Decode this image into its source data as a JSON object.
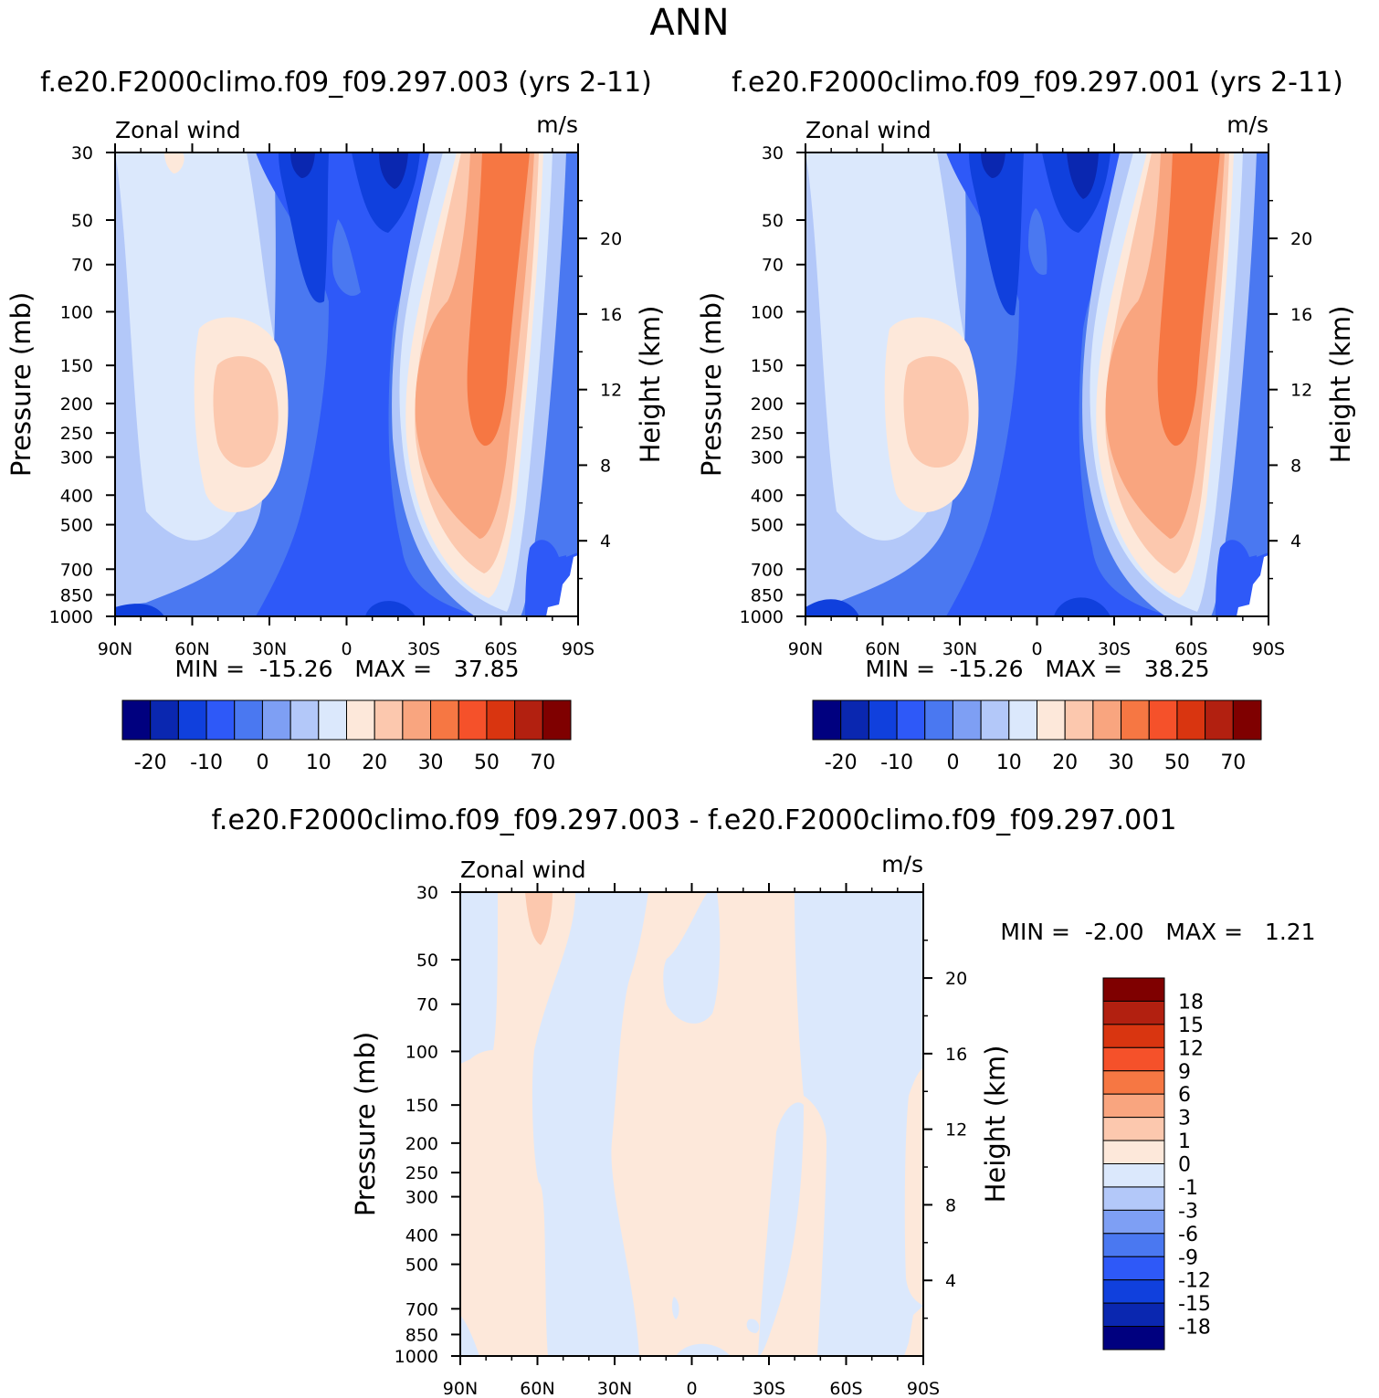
{
  "page_title": "ANN",
  "chart_data": [
    {
      "type": "heatmap",
      "id": "p1",
      "subtitle": "f.e20.F2000climo.f09_f09.297.003 (yrs 2-11)",
      "left_string": "Zonal wind",
      "units": "m/s",
      "xlabel": "",
      "ylabel": "Pressure (mb)",
      "y2label": "Height (km)",
      "x_ticks": [
        "90N",
        "60N",
        "30N",
        "0",
        "30S",
        "60S",
        "90S"
      ],
      "x_tick_values": [
        90,
        60,
        30,
        0,
        -30,
        -60,
        -90
      ],
      "y_ticks": [
        "30",
        "50",
        "70",
        "100",
        "150",
        "200",
        "250",
        "300",
        "400",
        "500",
        "700",
        "850",
        "1000"
      ],
      "y_tick_values": [
        30,
        50,
        70,
        100,
        150,
        200,
        250,
        300,
        400,
        500,
        700,
        850,
        1000
      ],
      "y2_ticks": [
        "20",
        "16",
        "12",
        "8",
        "4"
      ],
      "y2_tick_values": [
        20,
        16,
        12,
        8,
        4
      ],
      "ylim": [
        1000,
        30
      ],
      "stats": "MIN =  -15.26   MAX =   37.85",
      "min": -15.26,
      "max": 37.85,
      "colorbar_labels": [
        "-20",
        "-10",
        "0",
        "10",
        "20",
        "30",
        "50",
        "70"
      ],
      "contour_levels": [
        -25,
        -20,
        -15,
        -10,
        -5,
        0,
        5,
        10,
        15,
        20,
        25,
        30,
        40,
        50,
        60,
        70
      ],
      "colors": [
        "#00007f",
        "#0a27b0",
        "#1040dd",
        "#2e59f8",
        "#4a78f1",
        "#7e9ff4",
        "#b3c8f9",
        "#dbe8fc",
        "#fde8da",
        "#fcc8ae",
        "#f9a57f",
        "#f67743",
        "#f5512a",
        "#d93510",
        "#b22010",
        "#7f0000"
      ]
    },
    {
      "type": "heatmap",
      "id": "p2",
      "subtitle": "f.e20.F2000climo.f09_f09.297.001 (yrs 2-11)",
      "left_string": "Zonal wind",
      "units": "m/s",
      "xlabel": "",
      "ylabel": "Pressure (mb)",
      "y2label": "Height (km)",
      "x_ticks": [
        "90N",
        "60N",
        "30N",
        "0",
        "30S",
        "60S",
        "90S"
      ],
      "x_tick_values": [
        90,
        60,
        30,
        0,
        -30,
        -60,
        -90
      ],
      "y_ticks": [
        "30",
        "50",
        "70",
        "100",
        "150",
        "200",
        "250",
        "300",
        "400",
        "500",
        "700",
        "850",
        "1000"
      ],
      "y_tick_values": [
        30,
        50,
        70,
        100,
        150,
        200,
        250,
        300,
        400,
        500,
        700,
        850,
        1000
      ],
      "y2_ticks": [
        "20",
        "16",
        "12",
        "8",
        "4"
      ],
      "y2_tick_values": [
        20,
        16,
        12,
        8,
        4
      ],
      "ylim": [
        1000,
        30
      ],
      "stats": "MIN =  -15.26   MAX =   38.25",
      "min": -15.26,
      "max": 38.25,
      "colorbar_labels": [
        "-20",
        "-10",
        "0",
        "10",
        "20",
        "30",
        "50",
        "70"
      ],
      "contour_levels": [
        -25,
        -20,
        -15,
        -10,
        -5,
        0,
        5,
        10,
        15,
        20,
        25,
        30,
        40,
        50,
        60,
        70
      ],
      "colors": [
        "#00007f",
        "#0a27b0",
        "#1040dd",
        "#2e59f8",
        "#4a78f1",
        "#7e9ff4",
        "#b3c8f9",
        "#dbe8fc",
        "#fde8da",
        "#fcc8ae",
        "#f9a57f",
        "#f67743",
        "#f5512a",
        "#d93510",
        "#b22010",
        "#7f0000"
      ]
    },
    {
      "type": "heatmap",
      "id": "p3",
      "subtitle": "f.e20.F2000climo.f09_f09.297.003 - f.e20.F2000climo.f09_f09.297.001",
      "left_string": "Zonal wind",
      "units": "m/s",
      "xlabel": "",
      "ylabel": "Pressure (mb)",
      "y2label": "Height (km)",
      "x_ticks": [
        "90N",
        "60N",
        "30N",
        "0",
        "30S",
        "60S",
        "90S"
      ],
      "x_tick_values": [
        90,
        60,
        30,
        0,
        -30,
        -60,
        -90
      ],
      "y_ticks": [
        "30",
        "50",
        "70",
        "100",
        "150",
        "200",
        "250",
        "300",
        "400",
        "500",
        "700",
        "850",
        "1000"
      ],
      "y_tick_values": [
        30,
        50,
        70,
        100,
        150,
        200,
        250,
        300,
        400,
        500,
        700,
        850,
        1000
      ],
      "y2_ticks": [
        "20",
        "16",
        "12",
        "8",
        "4"
      ],
      "y2_tick_values": [
        20,
        16,
        12,
        8,
        4
      ],
      "ylim": [
        1000,
        30
      ],
      "stats": "MIN =  -2.00   MAX =   1.21",
      "min": -2.0,
      "max": 1.21,
      "colorbar_labels": [
        "18",
        "15",
        "12",
        "9",
        "6",
        "3",
        "1",
        "0",
        "-1",
        "-3",
        "-6",
        "-9",
        "-12",
        "-15",
        "-18"
      ],
      "contour_levels": [
        -18,
        -15,
        -12,
        -9,
        -6,
        -3,
        -1,
        0,
        1,
        3,
        6,
        9,
        12,
        15,
        18
      ],
      "colors": [
        "#7f0000",
        "#b22010",
        "#d93510",
        "#f5512a",
        "#f67743",
        "#f9a57f",
        "#fcc8ae",
        "#fde8da",
        "#dbe8fc",
        "#b3c8f9",
        "#7e9ff4",
        "#4a78f1",
        "#2e59f8",
        "#1040dd",
        "#0a27b0",
        "#00007f"
      ]
    }
  ]
}
